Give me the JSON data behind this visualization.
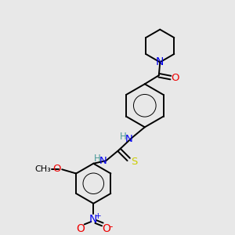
{
  "background_color": "#e8e8e8",
  "atom_colors": {
    "C": "#000000",
    "H": "#4a9a9a",
    "N": "#0000ee",
    "O": "#ee0000",
    "S": "#cccc00"
  },
  "bond_color": "#000000",
  "bond_width": 1.4,
  "font_size": 8.5,
  "fig_width": 3.0,
  "fig_height": 3.0,
  "dpi": 100
}
